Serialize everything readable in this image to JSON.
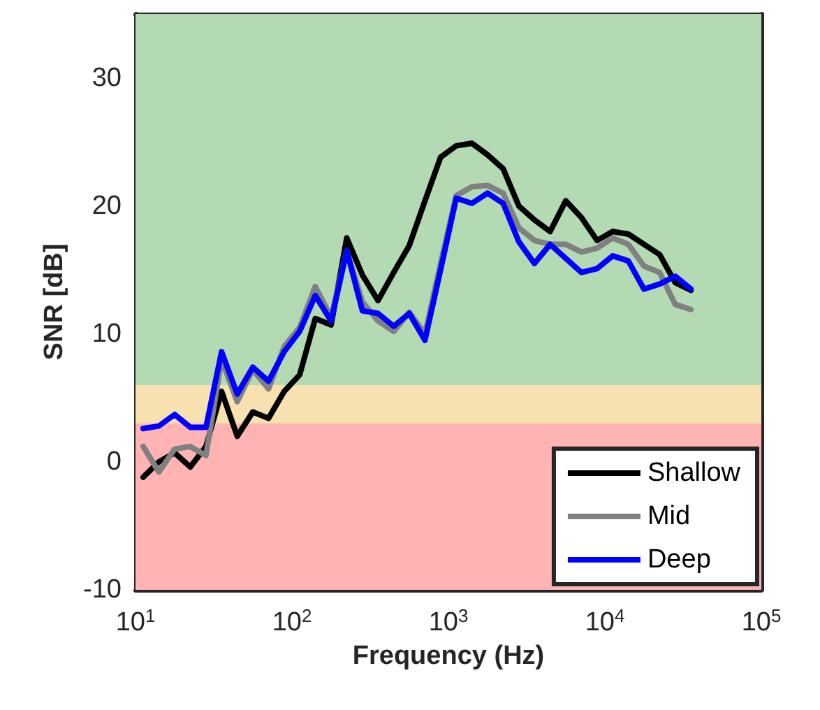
{
  "chart_data": {
    "type": "line",
    "xlabel": "Frequency (Hz)",
    "ylabel": "SNR [dB]",
    "log": "x",
    "x": [
      11.2,
      14.1,
      17.8,
      22.4,
      28.2,
      35.5,
      44.7,
      56.2,
      70.8,
      89.1,
      112,
      141,
      178,
      224,
      282,
      355,
      447,
      562,
      708,
      891,
      1122,
      1413,
      1778,
      2239,
      2818,
      3548,
      4467,
      5623,
      7079,
      8913,
      11220,
      14125,
      17783,
      22387,
      28184,
      35481
    ],
    "series": [
      {
        "name": "Shallow",
        "color": "#000000",
        "values": [
          -1.2,
          0,
          0.7,
          -0.4,
          1.2,
          5.5,
          2,
          3.9,
          3.4,
          5.5,
          6.8,
          11.2,
          10.7,
          17.5,
          14.6,
          12.6,
          14.8,
          16.9,
          20.4,
          23.8,
          24.7,
          24.9,
          24,
          22.9,
          20,
          18.9,
          18,
          20.4,
          19.1,
          17.3,
          18,
          17.8,
          17,
          16.2,
          14,
          13.4
        ]
      },
      {
        "name": "Mid",
        "color": "#808080",
        "values": [
          1.2,
          -0.8,
          1,
          1.2,
          0.5,
          8,
          4.7,
          7.2,
          5.7,
          9,
          10.5,
          13.7,
          11.3,
          16.5,
          12.5,
          11,
          10.2,
          11.7,
          10,
          15.5,
          20.8,
          21.5,
          21.6,
          21,
          18.3,
          17.3,
          17,
          17,
          16.4,
          16.7,
          17.5,
          17,
          15.3,
          14.8,
          12.3,
          11.9
        ]
      },
      {
        "name": "Deep",
        "color": "#0000ff",
        "values": [
          2.6,
          2.8,
          3.7,
          2.7,
          2.7,
          8.6,
          5.3,
          7.4,
          6.3,
          8.6,
          10.2,
          13,
          11,
          16.5,
          11.8,
          11.6,
          10.6,
          11.6,
          9.5,
          15,
          20.6,
          20.2,
          21,
          20.2,
          17.2,
          15.5,
          17,
          15.9,
          14.8,
          15.1,
          16.1,
          15.7,
          13.5,
          13.9,
          14.5,
          13.5
        ]
      }
    ],
    "xlim": [
      10,
      100000
    ],
    "xticks": [
      {
        "value": 10,
        "label": "10$^{1}$"
      },
      {
        "value": 100,
        "label": "10$^{2}$"
      },
      {
        "value": 1000,
        "label": "10$^{3}$"
      },
      {
        "value": 10000,
        "label": "10$^{4}$"
      },
      {
        "value": 100000,
        "label": "10$^{5}$"
      }
    ],
    "ylim": [
      -10,
      35
    ],
    "yticks": [
      -10,
      0,
      10,
      20,
      30
    ],
    "bands": [
      {
        "axis": "y",
        "from": -10,
        "to": 3,
        "color": "#ffb3b3"
      },
      {
        "axis": "y",
        "from": 3,
        "to": 6,
        "color": "#f7e1b0"
      },
      {
        "axis": "y",
        "from": 6,
        "to": 35,
        "color": "#b3dab3"
      }
    ],
    "legend": "bottom right",
    "marker": "none",
    "line_style": "solid"
  }
}
